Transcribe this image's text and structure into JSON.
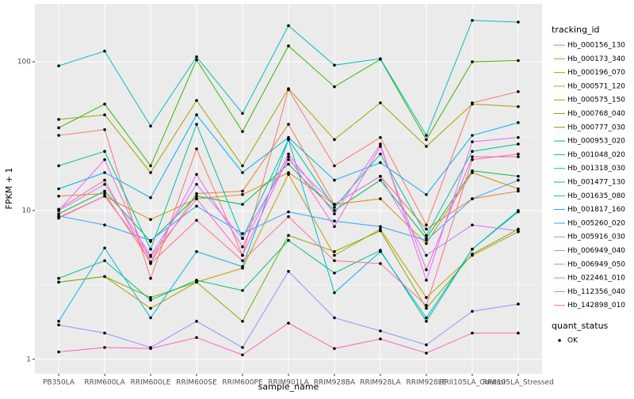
{
  "chart_data": {
    "type": "line",
    "categories": [
      "PB350LA",
      "RRIM600LA",
      "RRIM600LE",
      "RRIM600SE",
      "RRIM600PE",
      "RRIM901LA",
      "RRIM928BA",
      "RRIM928LA",
      "RRIM928LE",
      "RRII105LA_Control",
      "RRII105LA_Stressed"
    ],
    "x_label": "sample_name",
    "y_label": "FPKM + 1",
    "ylim": [
      0.8,
      245
    ],
    "yticks": [
      1,
      10,
      100
    ],
    "log_scale": true,
    "grid": true,
    "legend_title": "tracking_id",
    "legend_position": "right",
    "point_legend_title": "quant_status",
    "point_legend_label": "OK",
    "point_color": "#000000",
    "series": [
      {
        "name": "Hb_000156_130",
        "color": "#F8766D",
        "values": [
          32,
          35,
          3.5,
          26,
          5,
          65,
          20,
          31,
          8,
          53,
          63
        ]
      },
      {
        "name": "Hb_000173_340",
        "color": "#EA8331",
        "values": [
          12.5,
          13,
          4.5,
          13,
          13.5,
          38,
          11,
          17,
          7.5,
          12,
          13.5
        ]
      },
      {
        "name": "Hb_000196_070",
        "color": "#D89000",
        "values": [
          9,
          12.5,
          8.7,
          12,
          12.8,
          18,
          11,
          12,
          6,
          18,
          14
        ]
      },
      {
        "name": "Hb_000571_120",
        "color": "#C09B00",
        "values": [
          3.3,
          3.6,
          2.2,
          3.3,
          4.1,
          17.5,
          5,
          7.5,
          2.6,
          5,
          7.2
        ]
      },
      {
        "name": "Hb_000575_150",
        "color": "#A3A500",
        "values": [
          41,
          44,
          18,
          55,
          20,
          66,
          30,
          53,
          27,
          52,
          50
        ]
      },
      {
        "name": "Hb_000768_040",
        "color": "#7CAE00",
        "values": [
          3.3,
          3.6,
          2.6,
          3.3,
          1.8,
          6.8,
          5.3,
          7.3,
          2.2,
          5.1,
          7.5
        ]
      },
      {
        "name": "Hb_000777_030",
        "color": "#39B600",
        "values": [
          36,
          52,
          20,
          103,
          34,
          128,
          68,
          104,
          30,
          100,
          102
        ]
      },
      {
        "name": "Hb_000953_020",
        "color": "#00BB4E",
        "values": [
          9.5,
          13.5,
          6.2,
          12.5,
          11,
          20.5,
          10,
          16,
          6.5,
          18.5,
          17
        ]
      },
      {
        "name": "Hb_001048_020",
        "color": "#00BF7D",
        "values": [
          3.5,
          4.6,
          2.5,
          3.4,
          2.9,
          6.3,
          3.8,
          5.4,
          1.8,
          5.5,
          10
        ]
      },
      {
        "name": "Hb_001318_030",
        "color": "#00C1A3",
        "values": [
          20,
          25,
          5.5,
          38,
          6.5,
          30,
          10.5,
          24,
          6.8,
          25,
          28
        ]
      },
      {
        "name": "Hb_001477_130",
        "color": "#00BFC4",
        "values": [
          94,
          118,
          37,
          108,
          45,
          175,
          95,
          105,
          32,
          190,
          185
        ]
      },
      {
        "name": "Hb_001635_080",
        "color": "#00BAE0",
        "values": [
          1.8,
          5.6,
          1.9,
          5.3,
          4.2,
          30,
          2.8,
          5.3,
          1.9,
          5.5,
          9.8
        ]
      },
      {
        "name": "Hb_001817_160",
        "color": "#00B0F6",
        "values": [
          14,
          18,
          12.2,
          44,
          18,
          31,
          16,
          21,
          12.8,
          32,
          39
        ]
      },
      {
        "name": "Hb_005260_020",
        "color": "#35A2FF",
        "values": [
          9.2,
          8,
          6.3,
          10.7,
          7,
          9.8,
          8.5,
          7.8,
          6.3,
          12,
          16
        ]
      },
      {
        "name": "Hb_005916_030",
        "color": "#9590FF",
        "values": [
          1.7,
          1.5,
          1.2,
          1.8,
          1.2,
          3.9,
          1.9,
          1.55,
          1.25,
          2.1,
          2.35
        ]
      },
      {
        "name": "Hb_006949_040",
        "color": "#C77CFF",
        "values": [
          10,
          15,
          5,
          15,
          6.5,
          22,
          11,
          17,
          5,
          8,
          7.3
        ]
      },
      {
        "name": "Hb_006949_050",
        "color": "#E76BF3",
        "values": [
          10,
          22,
          4.5,
          17.5,
          5.7,
          24,
          9.5,
          28,
          3.4,
          29,
          31
        ]
      },
      {
        "name": "Hb_022461_010",
        "color": "#FA62DB",
        "values": [
          8.9,
          12.5,
          4.9,
          12,
          5,
          23,
          7.8,
          27,
          4,
          23,
          23
        ]
      },
      {
        "name": "Hb_112356_040",
        "color": "#FF62BC",
        "values": [
          1.12,
          1.2,
          1.18,
          1.4,
          1.07,
          1.75,
          1.18,
          1.37,
          1.1,
          1.5,
          1.5
        ]
      },
      {
        "name": "Hb_142898_010",
        "color": "#FF6C91",
        "values": [
          10.2,
          16,
          4.4,
          8.6,
          4.6,
          9.1,
          4.6,
          4.4,
          2.3,
          22,
          24
        ]
      }
    ]
  }
}
